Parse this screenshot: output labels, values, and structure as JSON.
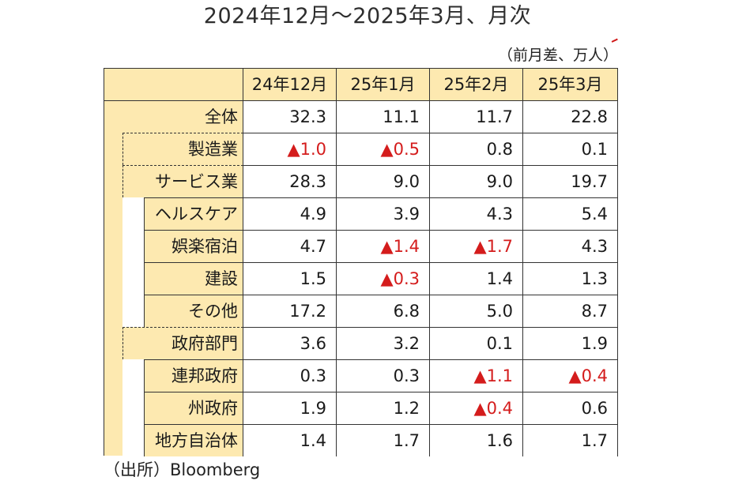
{
  "title": "2024年12月～2025年3月、月次",
  "unit": "（前月差、万人）",
  "source": "（出所）Bloomberg",
  "colors": {
    "header_bg": "#fde9b0",
    "negative": "#d41c1c"
  },
  "columns": [
    "24年12月",
    "25年1月",
    "25年2月",
    "25年3月"
  ],
  "rows": [
    {
      "label": "全体",
      "level": 0,
      "values": [
        "32.3",
        "11.1",
        "11.7",
        "22.8"
      ],
      "neg": [
        false,
        false,
        false,
        false
      ]
    },
    {
      "label": "製造業",
      "level": 1,
      "values": [
        "▲1.0",
        "▲0.5",
        "0.8",
        "0.1"
      ],
      "neg": [
        true,
        true,
        false,
        false
      ]
    },
    {
      "label": "サービス業",
      "level": 1,
      "values": [
        "28.3",
        "9.0",
        "9.0",
        "19.7"
      ],
      "neg": [
        false,
        false,
        false,
        false
      ]
    },
    {
      "label": "ヘルスケア",
      "level": 2,
      "values": [
        "4.9",
        "3.9",
        "4.3",
        "5.4"
      ],
      "neg": [
        false,
        false,
        false,
        false
      ]
    },
    {
      "label": "娯楽宿泊",
      "level": 2,
      "values": [
        "4.7",
        "▲1.4",
        "▲1.7",
        "4.3"
      ],
      "neg": [
        false,
        true,
        true,
        false
      ]
    },
    {
      "label": "建設",
      "level": 2,
      "values": [
        "1.5",
        "▲0.3",
        "1.4",
        "1.3"
      ],
      "neg": [
        false,
        true,
        false,
        false
      ]
    },
    {
      "label": "その他",
      "level": 2,
      "values": [
        "17.2",
        "6.8",
        "5.0",
        "8.7"
      ],
      "neg": [
        false,
        false,
        false,
        false
      ]
    },
    {
      "label": "政府部門",
      "level": 1,
      "values": [
        "3.6",
        "3.2",
        "0.1",
        "1.9"
      ],
      "neg": [
        false,
        false,
        false,
        false
      ]
    },
    {
      "label": "連邦政府",
      "level": 2,
      "values": [
        "0.3",
        "0.3",
        "▲1.1",
        "▲0.4"
      ],
      "neg": [
        false,
        false,
        true,
        true
      ]
    },
    {
      "label": "州政府",
      "level": 2,
      "values": [
        "1.9",
        "1.2",
        "▲0.4",
        "0.6"
      ],
      "neg": [
        false,
        false,
        true,
        false
      ]
    },
    {
      "label": "地方自治体",
      "level": 2,
      "values": [
        "1.4",
        "1.7",
        "1.6",
        "1.7"
      ],
      "neg": [
        false,
        false,
        false,
        false
      ]
    }
  ]
}
